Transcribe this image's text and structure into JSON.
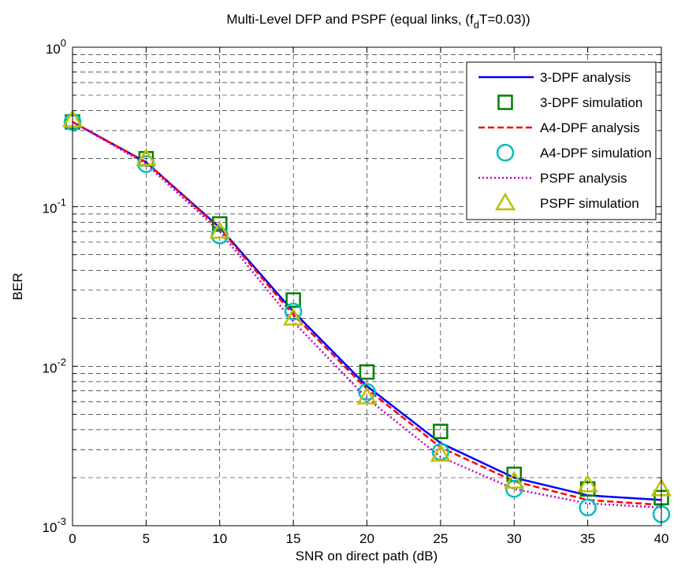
{
  "chart_data": {
    "type": "line",
    "title": "Multi-Level DFP and PSPF (equal links, (f",
    "title_sub": "d",
    "title_end": "T=0.03))",
    "xlabel": "SNR on direct path (dB)",
    "ylabel": "BER",
    "xlim": [
      0,
      40
    ],
    "ylim": [
      0.001,
      1
    ],
    "yscale": "log",
    "grid": true,
    "legend_position": "top-right",
    "x_ticks": [
      0,
      5,
      10,
      15,
      20,
      25,
      30,
      35,
      40
    ],
    "x_tick_labels": [
      "0",
      "5",
      "10",
      "15",
      "20",
      "25",
      "30",
      "35",
      "40"
    ],
    "y_ticks": [
      0.001,
      0.01,
      0.1,
      1
    ],
    "y_tick_labels": [
      {
        "base": "10",
        "exp": "-3"
      },
      {
        "base": "10",
        "exp": "-2"
      },
      {
        "base": "10",
        "exp": "-1"
      },
      {
        "base": "10",
        "exp": "0"
      }
    ],
    "x": [
      0,
      5,
      10,
      15,
      20,
      25,
      30,
      35,
      40
    ],
    "series": [
      {
        "name": "3-DPF analysis",
        "style": "solid-line",
        "color": "#0000ff",
        "values": [
          0.34,
          0.19,
          0.074,
          0.022,
          0.0075,
          0.0033,
          0.002,
          0.00155,
          0.00145
        ]
      },
      {
        "name": "3-DPF simulation",
        "style": "square-marker",
        "color": "#008000",
        "values": [
          0.34,
          0.2,
          0.078,
          0.026,
          0.0092,
          0.0039,
          0.0021,
          0.0017,
          0.0015
        ]
      },
      {
        "name": "A4-DPF analysis",
        "style": "dashed-line",
        "color": "#ff0000",
        "values": [
          0.34,
          0.19,
          0.073,
          0.021,
          0.0072,
          0.0031,
          0.0019,
          0.00145,
          0.00135
        ]
      },
      {
        "name": "A4-DPF simulation",
        "style": "circle-marker",
        "color": "#00bfbf",
        "values": [
          0.34,
          0.185,
          0.066,
          0.022,
          0.0069,
          0.0029,
          0.0017,
          0.0013,
          0.00118
        ]
      },
      {
        "name": "PSPF analysis",
        "style": "dotted-line",
        "color": "#bf00bf",
        "values": [
          0.34,
          0.185,
          0.07,
          0.019,
          0.0063,
          0.0027,
          0.0017,
          0.00138,
          0.0013
        ]
      },
      {
        "name": "PSPF simulation",
        "style": "triangle-marker",
        "color": "#bfbf00",
        "values": [
          0.35,
          0.2,
          0.07,
          0.02,
          0.0064,
          0.0028,
          0.0019,
          0.0018,
          0.0017
        ]
      }
    ]
  }
}
